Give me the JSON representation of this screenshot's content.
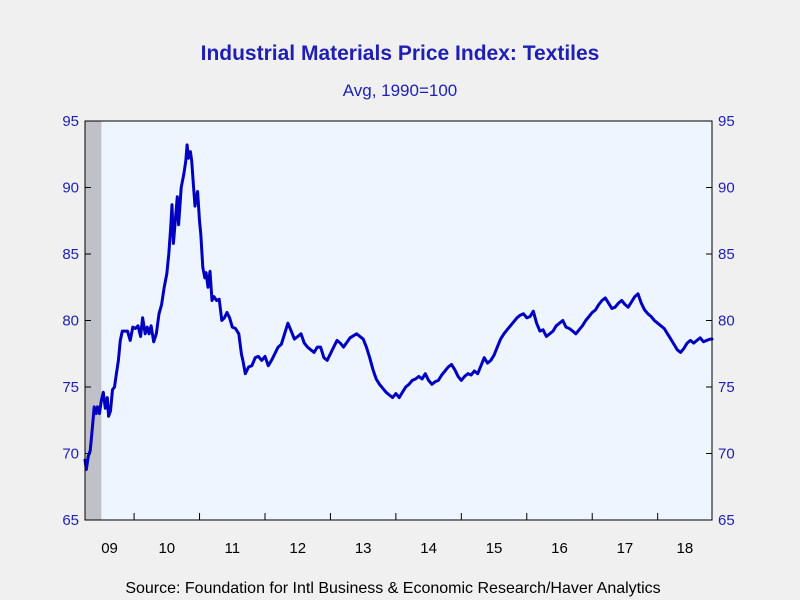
{
  "chart_data": {
    "type": "line",
    "title": "Industrial Materials Price Index: Textiles",
    "subtitle": "Avg, 1990=100",
    "source": "Source:  Foundation for Intl Business & Economic Research/Haver Analytics",
    "ylim": [
      65,
      95
    ],
    "yticks": [
      "65",
      "70",
      "75",
      "80",
      "85",
      "90",
      "95"
    ],
    "xlim": [
      2009.25,
      2018.83
    ],
    "xticks": [
      "09",
      "10",
      "11",
      "12",
      "13",
      "14",
      "15",
      "16",
      "17",
      "18"
    ],
    "grid": false,
    "recession_shade": [
      2009.25,
      2009.5
    ],
    "colors": {
      "line": "#0000c0",
      "plot_bg": "#eef5ff",
      "text": "#1f1fb4",
      "shade": "#c0c0c8"
    },
    "series": [
      {
        "points": [
          [
            2009.25,
            69.5
          ],
          [
            2009.27,
            68.8
          ],
          [
            2009.3,
            69.8
          ],
          [
            2009.33,
            70.2
          ],
          [
            2009.36,
            71.8
          ],
          [
            2009.39,
            73.5
          ],
          [
            2009.42,
            73.0
          ],
          [
            2009.44,
            73.5
          ],
          [
            2009.47,
            73.0
          ],
          [
            2009.5,
            74.0
          ],
          [
            2009.53,
            74.6
          ],
          [
            2009.56,
            73.4
          ],
          [
            2009.59,
            74.2
          ],
          [
            2009.61,
            72.8
          ],
          [
            2009.64,
            73.2
          ],
          [
            2009.67,
            74.8
          ],
          [
            2009.7,
            75.0
          ],
          [
            2009.73,
            76.0
          ],
          [
            2009.76,
            77.0
          ],
          [
            2009.79,
            78.5
          ],
          [
            2009.82,
            79.2
          ],
          [
            2009.86,
            79.2
          ],
          [
            2009.9,
            79.2
          ],
          [
            2009.94,
            78.5
          ],
          [
            2009.98,
            79.5
          ],
          [
            2010.02,
            79.4
          ],
          [
            2010.06,
            79.6
          ],
          [
            2010.1,
            78.8
          ],
          [
            2010.13,
            80.2
          ],
          [
            2010.17,
            79.0
          ],
          [
            2010.2,
            79.5
          ],
          [
            2010.23,
            79.0
          ],
          [
            2010.26,
            79.6
          ],
          [
            2010.3,
            78.4
          ],
          [
            2010.34,
            79.0
          ],
          [
            2010.38,
            80.5
          ],
          [
            2010.42,
            81.2
          ],
          [
            2010.46,
            82.5
          ],
          [
            2010.5,
            83.5
          ],
          [
            2010.53,
            85.0
          ],
          [
            2010.56,
            87.0
          ],
          [
            2010.58,
            88.7
          ],
          [
            2010.6,
            85.8
          ],
          [
            2010.63,
            87.5
          ],
          [
            2010.66,
            89.3
          ],
          [
            2010.68,
            87.2
          ],
          [
            2010.72,
            90.0
          ],
          [
            2010.76,
            91.0
          ],
          [
            2010.79,
            92.0
          ],
          [
            2010.81,
            93.2
          ],
          [
            2010.83,
            92.2
          ],
          [
            2010.86,
            92.7
          ],
          [
            2010.88,
            92.0
          ],
          [
            2010.91,
            90.0
          ],
          [
            2010.93,
            88.6
          ],
          [
            2010.95,
            89.2
          ],
          [
            2010.97,
            89.7
          ],
          [
            2011.0,
            87.5
          ],
          [
            2011.02,
            86.5
          ],
          [
            2011.05,
            84.0
          ],
          [
            2011.08,
            83.2
          ],
          [
            2011.1,
            83.6
          ],
          [
            2011.13,
            82.5
          ],
          [
            2011.16,
            83.7
          ],
          [
            2011.19,
            81.5
          ],
          [
            2011.22,
            81.8
          ],
          [
            2011.26,
            81.5
          ],
          [
            2011.3,
            81.6
          ],
          [
            2011.34,
            80.0
          ],
          [
            2011.38,
            80.2
          ],
          [
            2011.42,
            80.6
          ],
          [
            2011.46,
            80.2
          ],
          [
            2011.5,
            79.5
          ],
          [
            2011.55,
            79.4
          ],
          [
            2011.6,
            79.0
          ],
          [
            2011.64,
            77.5
          ],
          [
            2011.67,
            76.8
          ],
          [
            2011.7,
            76.0
          ],
          [
            2011.75,
            76.5
          ],
          [
            2011.8,
            76.6
          ],
          [
            2011.85,
            77.2
          ],
          [
            2011.9,
            77.3
          ],
          [
            2011.95,
            77.0
          ],
          [
            2012.0,
            77.3
          ],
          [
            2012.05,
            76.6
          ],
          [
            2012.1,
            77.0
          ],
          [
            2012.15,
            77.5
          ],
          [
            2012.2,
            78.0
          ],
          [
            2012.25,
            78.2
          ],
          [
            2012.3,
            79.0
          ],
          [
            2012.35,
            79.8
          ],
          [
            2012.4,
            79.2
          ],
          [
            2012.45,
            78.6
          ],
          [
            2012.5,
            78.8
          ],
          [
            2012.55,
            79.0
          ],
          [
            2012.6,
            78.3
          ],
          [
            2012.65,
            78.0
          ],
          [
            2012.7,
            77.8
          ],
          [
            2012.75,
            77.6
          ],
          [
            2012.8,
            78.0
          ],
          [
            2012.85,
            78.0
          ],
          [
            2012.9,
            77.2
          ],
          [
            2012.95,
            77.0
          ],
          [
            2013.0,
            77.5
          ],
          [
            2013.05,
            78.0
          ],
          [
            2013.1,
            78.5
          ],
          [
            2013.15,
            78.3
          ],
          [
            2013.2,
            78.0
          ],
          [
            2013.3,
            78.7
          ],
          [
            2013.4,
            79.0
          ],
          [
            2013.5,
            78.6
          ],
          [
            2013.55,
            78.0
          ],
          [
            2013.6,
            77.2
          ],
          [
            2013.65,
            76.3
          ],
          [
            2013.7,
            75.6
          ],
          [
            2013.75,
            75.2
          ],
          [
            2013.8,
            74.9
          ],
          [
            2013.85,
            74.6
          ],
          [
            2013.9,
            74.4
          ],
          [
            2013.95,
            74.2
          ],
          [
            2014.0,
            74.5
          ],
          [
            2014.05,
            74.2
          ],
          [
            2014.1,
            74.6
          ],
          [
            2014.15,
            75.0
          ],
          [
            2014.2,
            75.2
          ],
          [
            2014.25,
            75.5
          ],
          [
            2014.3,
            75.6
          ],
          [
            2014.35,
            75.8
          ],
          [
            2014.4,
            75.6
          ],
          [
            2014.45,
            76.0
          ],
          [
            2014.5,
            75.5
          ],
          [
            2014.55,
            75.2
          ],
          [
            2014.6,
            75.4
          ],
          [
            2014.65,
            75.5
          ],
          [
            2014.7,
            75.9
          ],
          [
            2014.75,
            76.2
          ],
          [
            2014.8,
            76.5
          ],
          [
            2014.85,
            76.7
          ],
          [
            2014.9,
            76.3
          ],
          [
            2014.95,
            75.8
          ],
          [
            2015.0,
            75.5
          ],
          [
            2015.05,
            75.8
          ],
          [
            2015.1,
            76.0
          ],
          [
            2015.15,
            75.9
          ],
          [
            2015.2,
            76.2
          ],
          [
            2015.25,
            76.0
          ],
          [
            2015.3,
            76.6
          ],
          [
            2015.35,
            77.2
          ],
          [
            2015.4,
            76.8
          ],
          [
            2015.45,
            77.0
          ],
          [
            2015.5,
            77.4
          ],
          [
            2015.55,
            78.0
          ],
          [
            2015.6,
            78.6
          ],
          [
            2015.65,
            79.0
          ],
          [
            2015.7,
            79.3
          ],
          [
            2015.75,
            79.6
          ],
          [
            2015.8,
            79.9
          ],
          [
            2015.85,
            80.2
          ],
          [
            2015.9,
            80.4
          ],
          [
            2015.95,
            80.5
          ],
          [
            2016.0,
            80.2
          ],
          [
            2016.05,
            80.3
          ],
          [
            2016.1,
            80.7
          ],
          [
            2016.15,
            79.8
          ],
          [
            2016.2,
            79.2
          ],
          [
            2016.25,
            79.3
          ],
          [
            2016.3,
            78.8
          ],
          [
            2016.35,
            79.0
          ],
          [
            2016.4,
            79.2
          ],
          [
            2016.45,
            79.6
          ],
          [
            2016.5,
            79.8
          ],
          [
            2016.55,
            80.0
          ],
          [
            2016.6,
            79.5
          ],
          [
            2016.65,
            79.4
          ],
          [
            2016.7,
            79.2
          ],
          [
            2016.75,
            79.0
          ],
          [
            2016.8,
            79.3
          ],
          [
            2016.85,
            79.6
          ],
          [
            2016.9,
            80.0
          ],
          [
            2016.95,
            80.3
          ],
          [
            2017.0,
            80.6
          ],
          [
            2017.05,
            80.8
          ],
          [
            2017.1,
            81.2
          ],
          [
            2017.15,
            81.5
          ],
          [
            2017.2,
            81.7
          ],
          [
            2017.25,
            81.3
          ],
          [
            2017.3,
            80.9
          ],
          [
            2017.35,
            81.0
          ],
          [
            2017.4,
            81.3
          ],
          [
            2017.45,
            81.5
          ],
          [
            2017.5,
            81.2
          ],
          [
            2017.55,
            81.0
          ],
          [
            2017.6,
            81.4
          ],
          [
            2017.65,
            81.8
          ],
          [
            2017.7,
            82.0
          ],
          [
            2017.75,
            81.3
          ],
          [
            2017.8,
            80.8
          ],
          [
            2017.85,
            80.5
          ],
          [
            2017.9,
            80.3
          ],
          [
            2017.95,
            80.0
          ],
          [
            2018.0,
            79.8
          ],
          [
            2018.05,
            79.6
          ],
          [
            2018.1,
            79.4
          ],
          [
            2018.15,
            79.0
          ],
          [
            2018.2,
            78.6
          ],
          [
            2018.25,
            78.2
          ],
          [
            2018.3,
            77.8
          ],
          [
            2018.35,
            77.6
          ],
          [
            2018.4,
            77.9
          ],
          [
            2018.45,
            78.3
          ],
          [
            2018.5,
            78.5
          ],
          [
            2018.55,
            78.3
          ],
          [
            2018.6,
            78.5
          ],
          [
            2018.65,
            78.7
          ],
          [
            2018.7,
            78.4
          ],
          [
            2018.75,
            78.5
          ],
          [
            2018.8,
            78.6
          ],
          [
            2018.83,
            78.6
          ]
        ]
      }
    ]
  }
}
